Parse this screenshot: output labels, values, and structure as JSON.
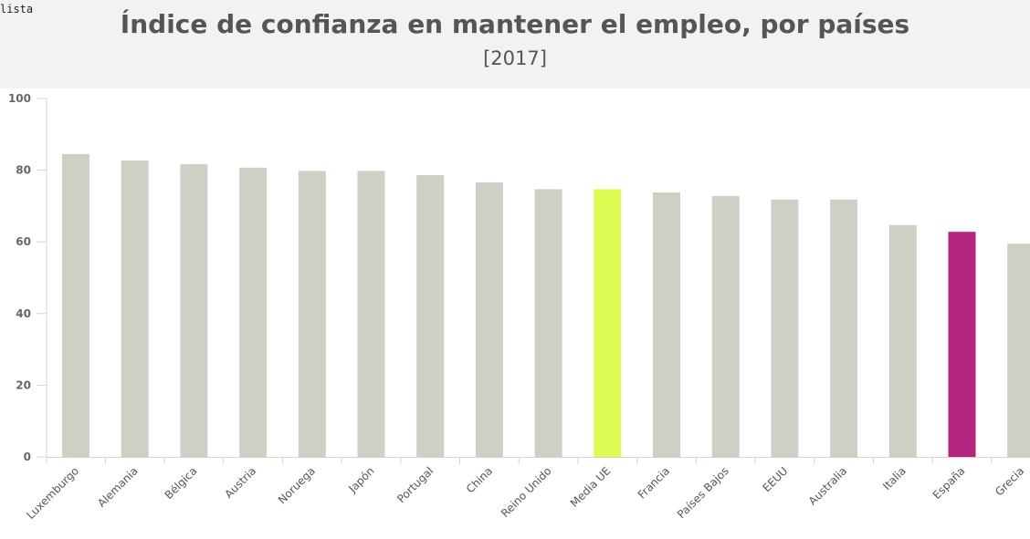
{
  "corner_text": "lista",
  "chart_data": {
    "type": "bar",
    "title": "Índice de confianza en mantener el empleo, por países",
    "subtitle": "[2017]",
    "xlabel": "",
    "ylabel": "",
    "ylim": [
      0,
      100
    ],
    "yticks": [
      0,
      20,
      40,
      60,
      80,
      100
    ],
    "grid": false,
    "categories": [
      "Luxemburgo",
      "Alemania",
      "Bélgica",
      "Austria",
      "Noruega",
      "Japón",
      "Portugal",
      "China",
      "Reino Unido",
      "Media UE",
      "Francia",
      "Países Bajos",
      "EEUU",
      "Australia",
      "Italia",
      "España",
      "Grecia"
    ],
    "values": [
      84.5,
      82.7,
      81.7,
      80.7,
      79.8,
      79.8,
      78.6,
      76.6,
      74.7,
      74.7,
      73.8,
      72.8,
      71.8,
      71.8,
      64.7,
      62.8,
      59.5
    ],
    "colors": {
      "default": "#cfcfc6",
      "Media UE": "#dcfb55",
      "España": "#b52481"
    }
  }
}
